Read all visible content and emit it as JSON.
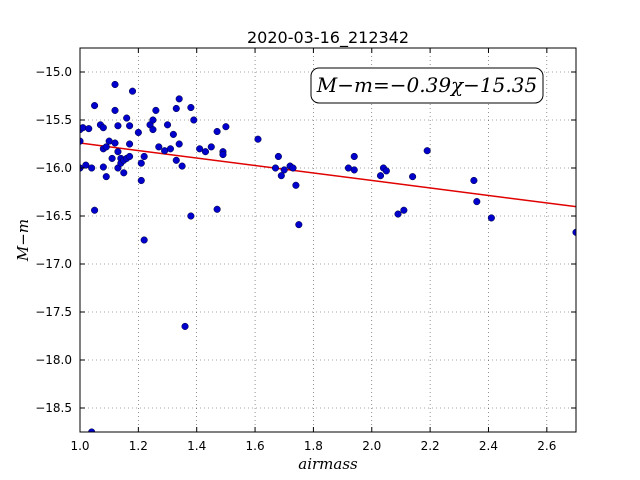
{
  "chart_data": {
    "type": "scatter",
    "title": "2020-03-16_212342",
    "xlabel": "airmass",
    "ylabel": "M−m",
    "xlim": [
      1.0,
      2.7
    ],
    "ylim": [
      -18.75,
      -14.75
    ],
    "xticks": [
      1.0,
      1.2,
      1.4,
      1.6,
      1.8,
      2.0,
      2.2,
      2.4,
      2.6
    ],
    "xtick_labels": [
      "1.0",
      "1.2",
      "1.4",
      "1.6",
      "1.8",
      "2.0",
      "2.2",
      "2.4",
      "2.6"
    ],
    "yticks": [
      -15.0,
      -15.5,
      -16.0,
      -16.5,
      -17.0,
      -17.5,
      -18.0,
      -18.5
    ],
    "ytick_labels": [
      "−15.0",
      "−15.5",
      "−16.0",
      "−16.5",
      "−17.0",
      "−17.5",
      "−18.0",
      "−18.5"
    ],
    "grid": true,
    "annotation": "M−m=−0.39χ−15.35",
    "fit": {
      "slope": -0.39,
      "intercept": -15.35,
      "color": "#e00000"
    },
    "point_color": "#0000cc",
    "points": [
      [
        1.0,
        -15.6
      ],
      [
        1.0,
        -15.72
      ],
      [
        1.0,
        -16.0
      ],
      [
        1.01,
        -15.58
      ],
      [
        1.02,
        -15.97
      ],
      [
        1.03,
        -15.59
      ],
      [
        1.04,
        -16.0
      ],
      [
        1.04,
        -18.75
      ],
      [
        1.05,
        -15.35
      ],
      [
        1.05,
        -16.44
      ],
      [
        1.07,
        -15.55
      ],
      [
        1.08,
        -15.58
      ],
      [
        1.08,
        -15.8
      ],
      [
        1.08,
        -15.99
      ],
      [
        1.09,
        -15.78
      ],
      [
        1.09,
        -16.09
      ],
      [
        1.1,
        -15.72
      ],
      [
        1.11,
        -15.9
      ],
      [
        1.12,
        -15.74
      ],
      [
        1.12,
        -15.4
      ],
      [
        1.12,
        -15.13
      ],
      [
        1.13,
        -15.56
      ],
      [
        1.13,
        -15.83
      ],
      [
        1.13,
        -16.0
      ],
      [
        1.14,
        -15.9
      ],
      [
        1.14,
        -15.95
      ],
      [
        1.15,
        -16.05
      ],
      [
        1.15,
        -15.92
      ],
      [
        1.16,
        -15.48
      ],
      [
        1.16,
        -15.9
      ],
      [
        1.17,
        -15.56
      ],
      [
        1.17,
        -15.75
      ],
      [
        1.17,
        -15.88
      ],
      [
        1.18,
        -15.2
      ],
      [
        1.2,
        -15.63
      ],
      [
        1.21,
        -15.95
      ],
      [
        1.21,
        -16.13
      ],
      [
        1.22,
        -15.88
      ],
      [
        1.22,
        -16.75
      ],
      [
        1.24,
        -15.55
      ],
      [
        1.25,
        -15.6
      ],
      [
        1.25,
        -15.5
      ],
      [
        1.26,
        -15.4
      ],
      [
        1.27,
        -15.78
      ],
      [
        1.29,
        -15.82
      ],
      [
        1.3,
        -15.55
      ],
      [
        1.31,
        -15.8
      ],
      [
        1.32,
        -15.65
      ],
      [
        1.33,
        -15.92
      ],
      [
        1.33,
        -15.38
      ],
      [
        1.34,
        -15.28
      ],
      [
        1.34,
        -15.75
      ],
      [
        1.35,
        -15.98
      ],
      [
        1.36,
        -17.65
      ],
      [
        1.38,
        -15.37
      ],
      [
        1.38,
        -16.5
      ],
      [
        1.39,
        -15.5
      ],
      [
        1.41,
        -15.8
      ],
      [
        1.43,
        -15.83
      ],
      [
        1.45,
        -15.78
      ],
      [
        1.47,
        -15.62
      ],
      [
        1.47,
        -16.43
      ],
      [
        1.49,
        -15.83
      ],
      [
        1.49,
        -15.86
      ],
      [
        1.5,
        -15.57
      ],
      [
        1.61,
        -15.7
      ],
      [
        1.67,
        -16.0
      ],
      [
        1.68,
        -15.88
      ],
      [
        1.69,
        -16.08
      ],
      [
        1.7,
        -16.02
      ],
      [
        1.72,
        -15.98
      ],
      [
        1.73,
        -16.0
      ],
      [
        1.74,
        -16.18
      ],
      [
        1.75,
        -16.59
      ],
      [
        1.92,
        -16.0
      ],
      [
        1.94,
        -15.88
      ],
      [
        1.94,
        -16.02
      ],
      [
        2.03,
        -16.08
      ],
      [
        2.04,
        -16.0
      ],
      [
        2.05,
        -16.03
      ],
      [
        2.09,
        -16.48
      ],
      [
        2.11,
        -16.44
      ],
      [
        2.14,
        -16.09
      ],
      [
        2.19,
        -15.82
      ],
      [
        2.35,
        -16.13
      ],
      [
        2.36,
        -16.35
      ],
      [
        2.41,
        -16.52
      ],
      [
        2.7,
        -16.67
      ]
    ]
  }
}
